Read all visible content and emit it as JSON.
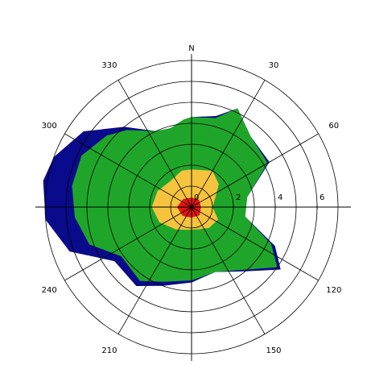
{
  "chart_data": {
    "type": "polar-area",
    "north_label": "N",
    "direction_labels": [
      "30",
      "60",
      "120",
      "150",
      "210",
      "240",
      "300",
      "330"
    ],
    "ring_labels": [
      "0",
      "2",
      "4",
      "6"
    ],
    "r_max": 7,
    "angles": [
      0,
      30,
      60,
      90,
      120,
      150,
      180,
      210,
      240,
      270,
      300,
      330
    ],
    "colors": {
      "outer": "#0a0a8c",
      "green": "#1fa62a",
      "yellow": "#f6c33f",
      "center": "#e01515"
    },
    "series": [
      {
        "color_key": "outer",
        "points": [
          [
            0,
            4.3
          ],
          [
            15,
            4.5
          ],
          [
            25,
            5.2
          ],
          [
            40,
            4.4
          ],
          [
            60,
            4.3
          ],
          [
            80,
            2.7
          ],
          [
            100,
            2.6
          ],
          [
            115,
            4.4
          ],
          [
            125,
            5.2
          ],
          [
            140,
            4.0
          ],
          [
            160,
            3.3
          ],
          [
            180,
            3.6
          ],
          [
            200,
            4.0
          ],
          [
            215,
            4.6
          ],
          [
            235,
            4.5
          ],
          [
            250,
            6.2
          ],
          [
            265,
            7.0
          ],
          [
            280,
            7.2
          ],
          [
            290,
            7.0
          ],
          [
            305,
            6.3
          ],
          [
            320,
            5.0
          ],
          [
            335,
            4.0
          ],
          [
            345,
            3.9
          ],
          [
            355,
            4.2
          ]
        ]
      },
      {
        "color_key": "green",
        "points": [
          [
            0,
            4.3
          ],
          [
            15,
            4.4
          ],
          [
            25,
            5.2
          ],
          [
            40,
            4.4
          ],
          [
            60,
            4.2
          ],
          [
            80,
            2.7
          ],
          [
            100,
            2.6
          ],
          [
            115,
            4.2
          ],
          [
            125,
            5.0
          ],
          [
            140,
            3.9
          ],
          [
            160,
            3.3
          ],
          [
            180,
            3.5
          ],
          [
            200,
            3.8
          ],
          [
            215,
            4.3
          ],
          [
            235,
            4.1
          ],
          [
            250,
            5.2
          ],
          [
            265,
            5.6
          ],
          [
            280,
            5.8
          ],
          [
            295,
            5.8
          ],
          [
            310,
            5.3
          ],
          [
            320,
            4.8
          ],
          [
            335,
            4.0
          ],
          [
            345,
            3.9
          ],
          [
            355,
            4.2
          ]
        ]
      },
      {
        "color_key": "yellow",
        "points": [
          [
            0,
            1.8
          ],
          [
            30,
            2.0
          ],
          [
            50,
            1.7
          ],
          [
            70,
            1.2
          ],
          [
            90,
            1.0
          ],
          [
            115,
            1.4
          ],
          [
            140,
            1.3
          ],
          [
            165,
            1.1
          ],
          [
            190,
            1.1
          ],
          [
            215,
            1.3
          ],
          [
            245,
            1.7
          ],
          [
            270,
            1.9
          ],
          [
            295,
            1.8
          ],
          [
            320,
            1.6
          ],
          [
            345,
            1.8
          ]
        ]
      },
      {
        "color_key": "center",
        "points": [
          [
            0,
            0.45
          ],
          [
            45,
            0.5
          ],
          [
            90,
            0.45
          ],
          [
            135,
            0.55
          ],
          [
            180,
            0.5
          ],
          [
            225,
            0.6
          ],
          [
            270,
            0.7
          ],
          [
            315,
            0.55
          ]
        ]
      }
    ],
    "grid": true
  }
}
